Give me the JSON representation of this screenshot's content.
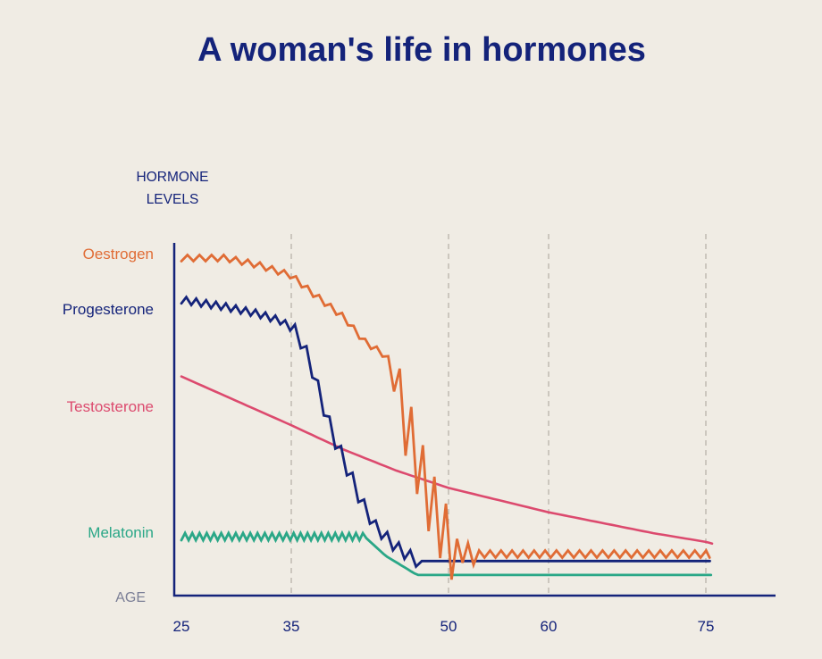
{
  "chart_data": {
    "type": "line",
    "title": "A woman's life in hormones",
    "ylabel_lines": [
      "HORMONE",
      "LEVELS"
    ],
    "xlabel": "AGE",
    "x_ticks": [
      {
        "label": "25",
        "value": 25
      },
      {
        "label": "35",
        "value": 35
      },
      {
        "label": "50",
        "value": 50
      },
      {
        "label": "60",
        "value": 60
      },
      {
        "label": "75",
        "value": 75
      }
    ],
    "x_gridlines": [
      35,
      50,
      60,
      75
    ],
    "grid": "dashed vertical",
    "y_ticks_shown": false,
    "series": [
      {
        "name": "Oestrogen",
        "color": "#e06c35",
        "line_style": "zigzag",
        "points": [
          [
            25,
            90
          ],
          [
            29,
            90
          ],
          [
            32,
            88
          ],
          [
            35,
            85
          ],
          [
            37,
            80
          ],
          [
            40,
            73
          ],
          [
            42,
            66
          ],
          [
            44,
            62
          ],
          [
            45,
            52
          ],
          [
            46,
            42
          ],
          [
            47,
            32
          ],
          [
            48,
            22
          ],
          [
            49,
            15
          ],
          [
            50,
            8
          ],
          [
            51,
            6
          ],
          [
            52,
            5
          ],
          [
            54,
            5
          ],
          [
            62,
            5
          ],
          [
            70,
            5
          ],
          [
            76,
            5
          ]
        ]
      },
      {
        "name": "Progesterone",
        "color": "#14237a",
        "line_style": "zigzag",
        "points": [
          [
            25,
            78
          ],
          [
            29,
            76
          ],
          [
            32,
            74
          ],
          [
            34,
            72
          ],
          [
            35,
            70
          ],
          [
            36,
            66
          ],
          [
            37,
            58
          ],
          [
            38,
            48
          ],
          [
            39,
            39
          ],
          [
            40,
            32
          ],
          [
            41,
            25
          ],
          [
            42,
            18
          ],
          [
            43,
            13
          ],
          [
            44,
            10
          ],
          [
            45,
            7
          ],
          [
            46,
            5
          ],
          [
            47,
            3
          ],
          [
            48,
            3
          ],
          [
            50,
            3
          ],
          [
            60,
            3
          ],
          [
            70,
            3
          ],
          [
            76,
            3
          ]
        ]
      },
      {
        "name": "Testosterone",
        "color": "#dc4a6e",
        "line_style": "smooth",
        "points": [
          [
            25,
            56
          ],
          [
            30,
            49
          ],
          [
            35,
            42
          ],
          [
            40,
            35
          ],
          [
            45,
            29
          ],
          [
            50,
            24
          ],
          [
            55,
            20.5
          ],
          [
            60,
            17
          ],
          [
            65,
            14
          ],
          [
            70,
            11
          ],
          [
            76,
            8
          ]
        ]
      },
      {
        "name": "Melatonin",
        "color": "#2aa787",
        "line_style": "zigzag",
        "points": [
          [
            25,
            10
          ],
          [
            28,
            10
          ],
          [
            31,
            10
          ],
          [
            34,
            10
          ],
          [
            37,
            10
          ],
          [
            40,
            10
          ],
          [
            42,
            10
          ],
          [
            44,
            4.5
          ],
          [
            47,
            -1
          ],
          [
            50,
            -1
          ],
          [
            60,
            -1
          ],
          [
            70,
            -1
          ],
          [
            76,
            -1
          ]
        ]
      }
    ]
  },
  "colors": {
    "background": "#f0ece4",
    "axis": "#14237a",
    "title": "#14237a",
    "gridline": "#b9b3aa",
    "age_label": "#7b7f96"
  }
}
